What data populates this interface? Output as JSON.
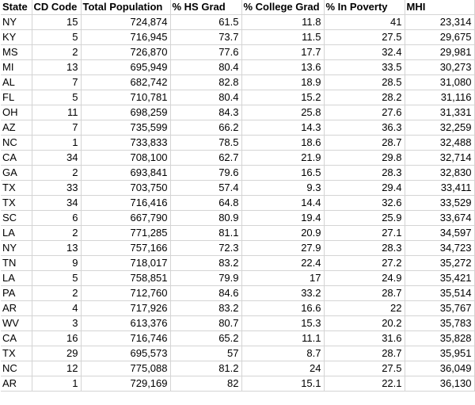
{
  "columns": [
    "State",
    "CD Code",
    "Total Population",
    "% HS Grad",
    "% College Grad",
    "% In Poverty",
    "MHI"
  ],
  "rows": [
    [
      "NY",
      "15",
      "724,874",
      "61.5",
      "11.8",
      "41",
      "23,314"
    ],
    [
      "KY",
      "5",
      "716,945",
      "73.7",
      "11.5",
      "27.5",
      "29,675"
    ],
    [
      "MS",
      "2",
      "726,870",
      "77.6",
      "17.7",
      "32.4",
      "29,981"
    ],
    [
      "MI",
      "13",
      "695,949",
      "80.4",
      "13.6",
      "33.5",
      "30,273"
    ],
    [
      "AL",
      "7",
      "682,742",
      "82.8",
      "18.9",
      "28.5",
      "31,080"
    ],
    [
      "FL",
      "5",
      "710,781",
      "80.4",
      "15.2",
      "28.2",
      "31,116"
    ],
    [
      "OH",
      "11",
      "698,259",
      "84.3",
      "25.8",
      "27.6",
      "31,331"
    ],
    [
      "AZ",
      "7",
      "735,599",
      "66.2",
      "14.3",
      "36.3",
      "32,259"
    ],
    [
      "NC",
      "1",
      "733,833",
      "78.5",
      "18.6",
      "28.7",
      "32,488"
    ],
    [
      "CA",
      "34",
      "708,100",
      "62.7",
      "21.9",
      "29.8",
      "32,714"
    ],
    [
      "GA",
      "2",
      "693,841",
      "79.6",
      "16.5",
      "28.3",
      "32,830"
    ],
    [
      "TX",
      "33",
      "703,750",
      "57.4",
      "9.3",
      "29.4",
      "33,411"
    ],
    [
      "TX",
      "34",
      "716,416",
      "64.8",
      "14.4",
      "32.6",
      "33,529"
    ],
    [
      "SC",
      "6",
      "667,790",
      "80.9",
      "19.4",
      "25.9",
      "33,674"
    ],
    [
      "LA",
      "2",
      "771,285",
      "81.1",
      "20.9",
      "27.1",
      "34,597"
    ],
    [
      "NY",
      "13",
      "757,166",
      "72.3",
      "27.9",
      "28.3",
      "34,723"
    ],
    [
      "TN",
      "9",
      "718,017",
      "83.2",
      "22.4",
      "27.2",
      "35,272"
    ],
    [
      "LA",
      "5",
      "758,851",
      "79.9",
      "17",
      "24.9",
      "35,421"
    ],
    [
      "PA",
      "2",
      "712,760",
      "84.6",
      "33.2",
      "28.7",
      "35,514"
    ],
    [
      "AR",
      "4",
      "717,926",
      "83.2",
      "16.6",
      "22",
      "35,767"
    ],
    [
      "WV",
      "3",
      "613,376",
      "80.7",
      "15.3",
      "20.2",
      "35,783"
    ],
    [
      "CA",
      "16",
      "716,746",
      "65.2",
      "11.1",
      "31.6",
      "35,828"
    ],
    [
      "TX",
      "29",
      "695,573",
      "57",
      "8.7",
      "28.7",
      "35,951"
    ],
    [
      "NC",
      "12",
      "775,088",
      "81.2",
      "24",
      "27.5",
      "36,049"
    ],
    [
      "AR",
      "1",
      "729,169",
      "82",
      "15.1",
      "22.1",
      "36,130"
    ]
  ]
}
